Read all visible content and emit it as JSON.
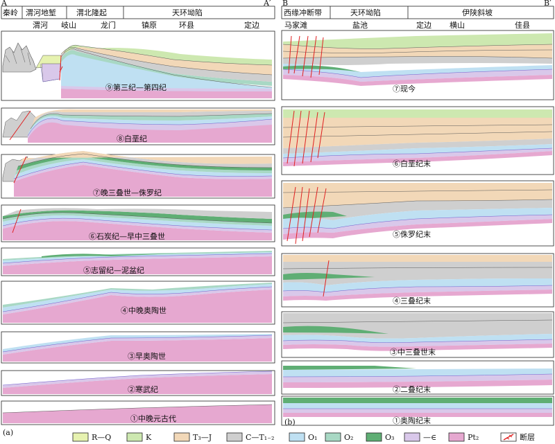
{
  "left": {
    "corner_start": "A",
    "corner_end": "A′",
    "regions": [
      "秦岭",
      "渭河地堑",
      "渭北隆起",
      "天环坳陷"
    ],
    "places": [
      "渭河",
      "岐山",
      "龙门",
      "镇原",
      "环县",
      "定边"
    ],
    "stages": [
      "⑨第三纪—第四纪",
      "⑧白垩纪",
      "⑦晚三叠世—侏罗纪",
      "⑥石炭纪—早中三叠世",
      "⑤志留纪—泥盆纪",
      "④中晚奥陶世",
      "③早奥陶世",
      "②寒武纪",
      "①中晚元古代"
    ],
    "panel_label": "(a)"
  },
  "right": {
    "corner_start": "B",
    "corner_end": "B′",
    "regions": [
      "西缘冲断带",
      "天环坳陷",
      "伊陕斜坡"
    ],
    "places": [
      "马家滩",
      "盐池",
      "定边",
      "横山",
      "佳县"
    ],
    "stages": [
      "⑦现今",
      "⑥白垩纪末",
      "⑤侏罗纪末",
      "④三叠纪末",
      "③中三叠世末",
      "②二叠纪末",
      "①奥陶纪末"
    ],
    "panel_label": "(b)"
  },
  "legend": [
    {
      "label": "R—Q",
      "color": "#e6f2b0"
    },
    {
      "label": "K",
      "color": "#cde8b0"
    },
    {
      "label": "T₃—J",
      "color": "#f2d8b8"
    },
    {
      "label": "C—T₁₋₂",
      "color": "#cfcfcf"
    },
    {
      "label": "O₁",
      "color": "#bfe0f2"
    },
    {
      "label": "O₂",
      "color": "#a8d8c4"
    },
    {
      "label": "O₃",
      "color": "#5fae74"
    },
    {
      "label": "—∈",
      "color": "#d9c8ea"
    },
    {
      "label": "Pt₂",
      "color": "#e6a8d0"
    },
    {
      "label": "断层",
      "color": "#e02020"
    }
  ]
}
